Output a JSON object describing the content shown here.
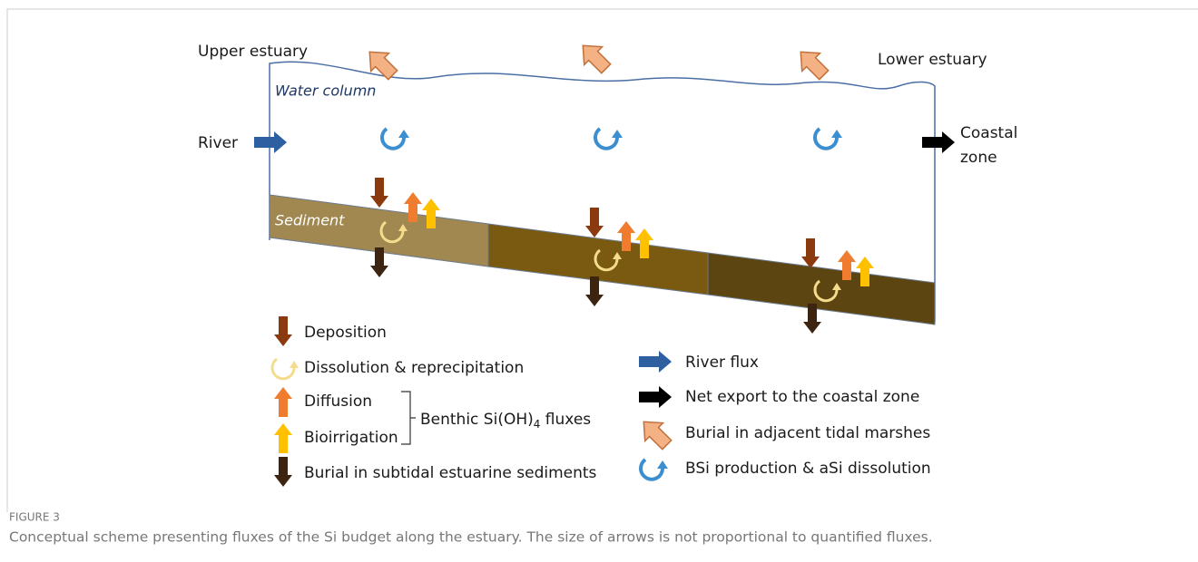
{
  "labels": {
    "upper": "Upper estuary",
    "lower": "Lower estuary",
    "water": "Water column",
    "river": "River",
    "coastal": [
      "Coastal",
      "zone"
    ],
    "sediment": "Sediment"
  },
  "legend": {
    "deposition": "Deposition",
    "dissolution": "Dissolution & reprecipitation",
    "diffusion": "Diffusion",
    "bioirrigation": "Bioirrigation",
    "benthic": {
      "pre": "Benthic Si(OH)",
      "sub": "4",
      "post": " fluxes"
    },
    "burial_subtidal": "Burial in subtidal estuarine sediments",
    "river_flux": "River flux",
    "net_export": "Net export to the coastal zone",
    "burial_marsh": "Burial in adjacent tidal marshes",
    "bsi": "BSi production & aSi dissolution"
  },
  "caption": {
    "label": "FIGURE 3",
    "text": "Conceptual scheme presenting fluxes of the Si budget along the estuary. The size of arrows is not proportional to quantified fluxes."
  }
}
